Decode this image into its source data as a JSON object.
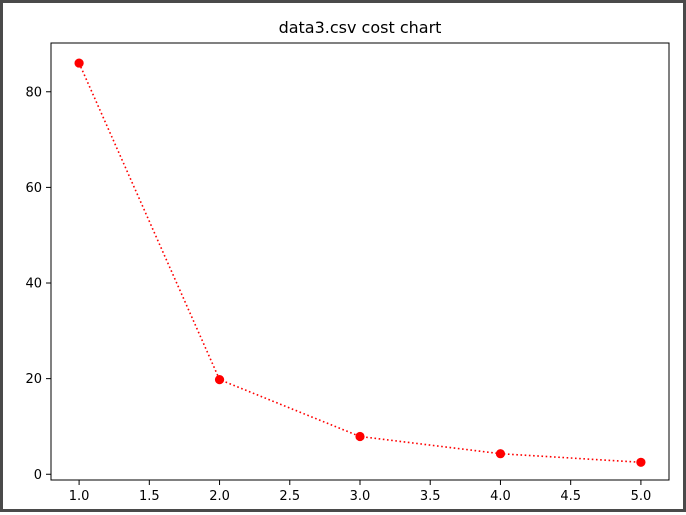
{
  "chart_data": {
    "type": "line",
    "title": "data3.csv cost chart",
    "xlabel": "",
    "ylabel": "",
    "x": [
      1.0,
      2.0,
      3.0,
      4.0,
      5.0
    ],
    "series": [
      {
        "values": [
          86.0,
          19.8,
          7.9,
          4.3,
          2.5
        ],
        "color": "#ff0000",
        "line_style": "dotted",
        "marker": "circle"
      }
    ],
    "xticks": [
      "1.0",
      "1.5",
      "2.0",
      "2.5",
      "3.0",
      "3.5",
      "4.0",
      "4.5",
      "5.0"
    ],
    "yticks": [
      "0",
      "20",
      "40",
      "60",
      "80"
    ],
    "xlim": [
      0.8,
      5.2
    ],
    "ylim": [
      -1.2,
      90.2
    ],
    "grid": false,
    "legend": false
  }
}
